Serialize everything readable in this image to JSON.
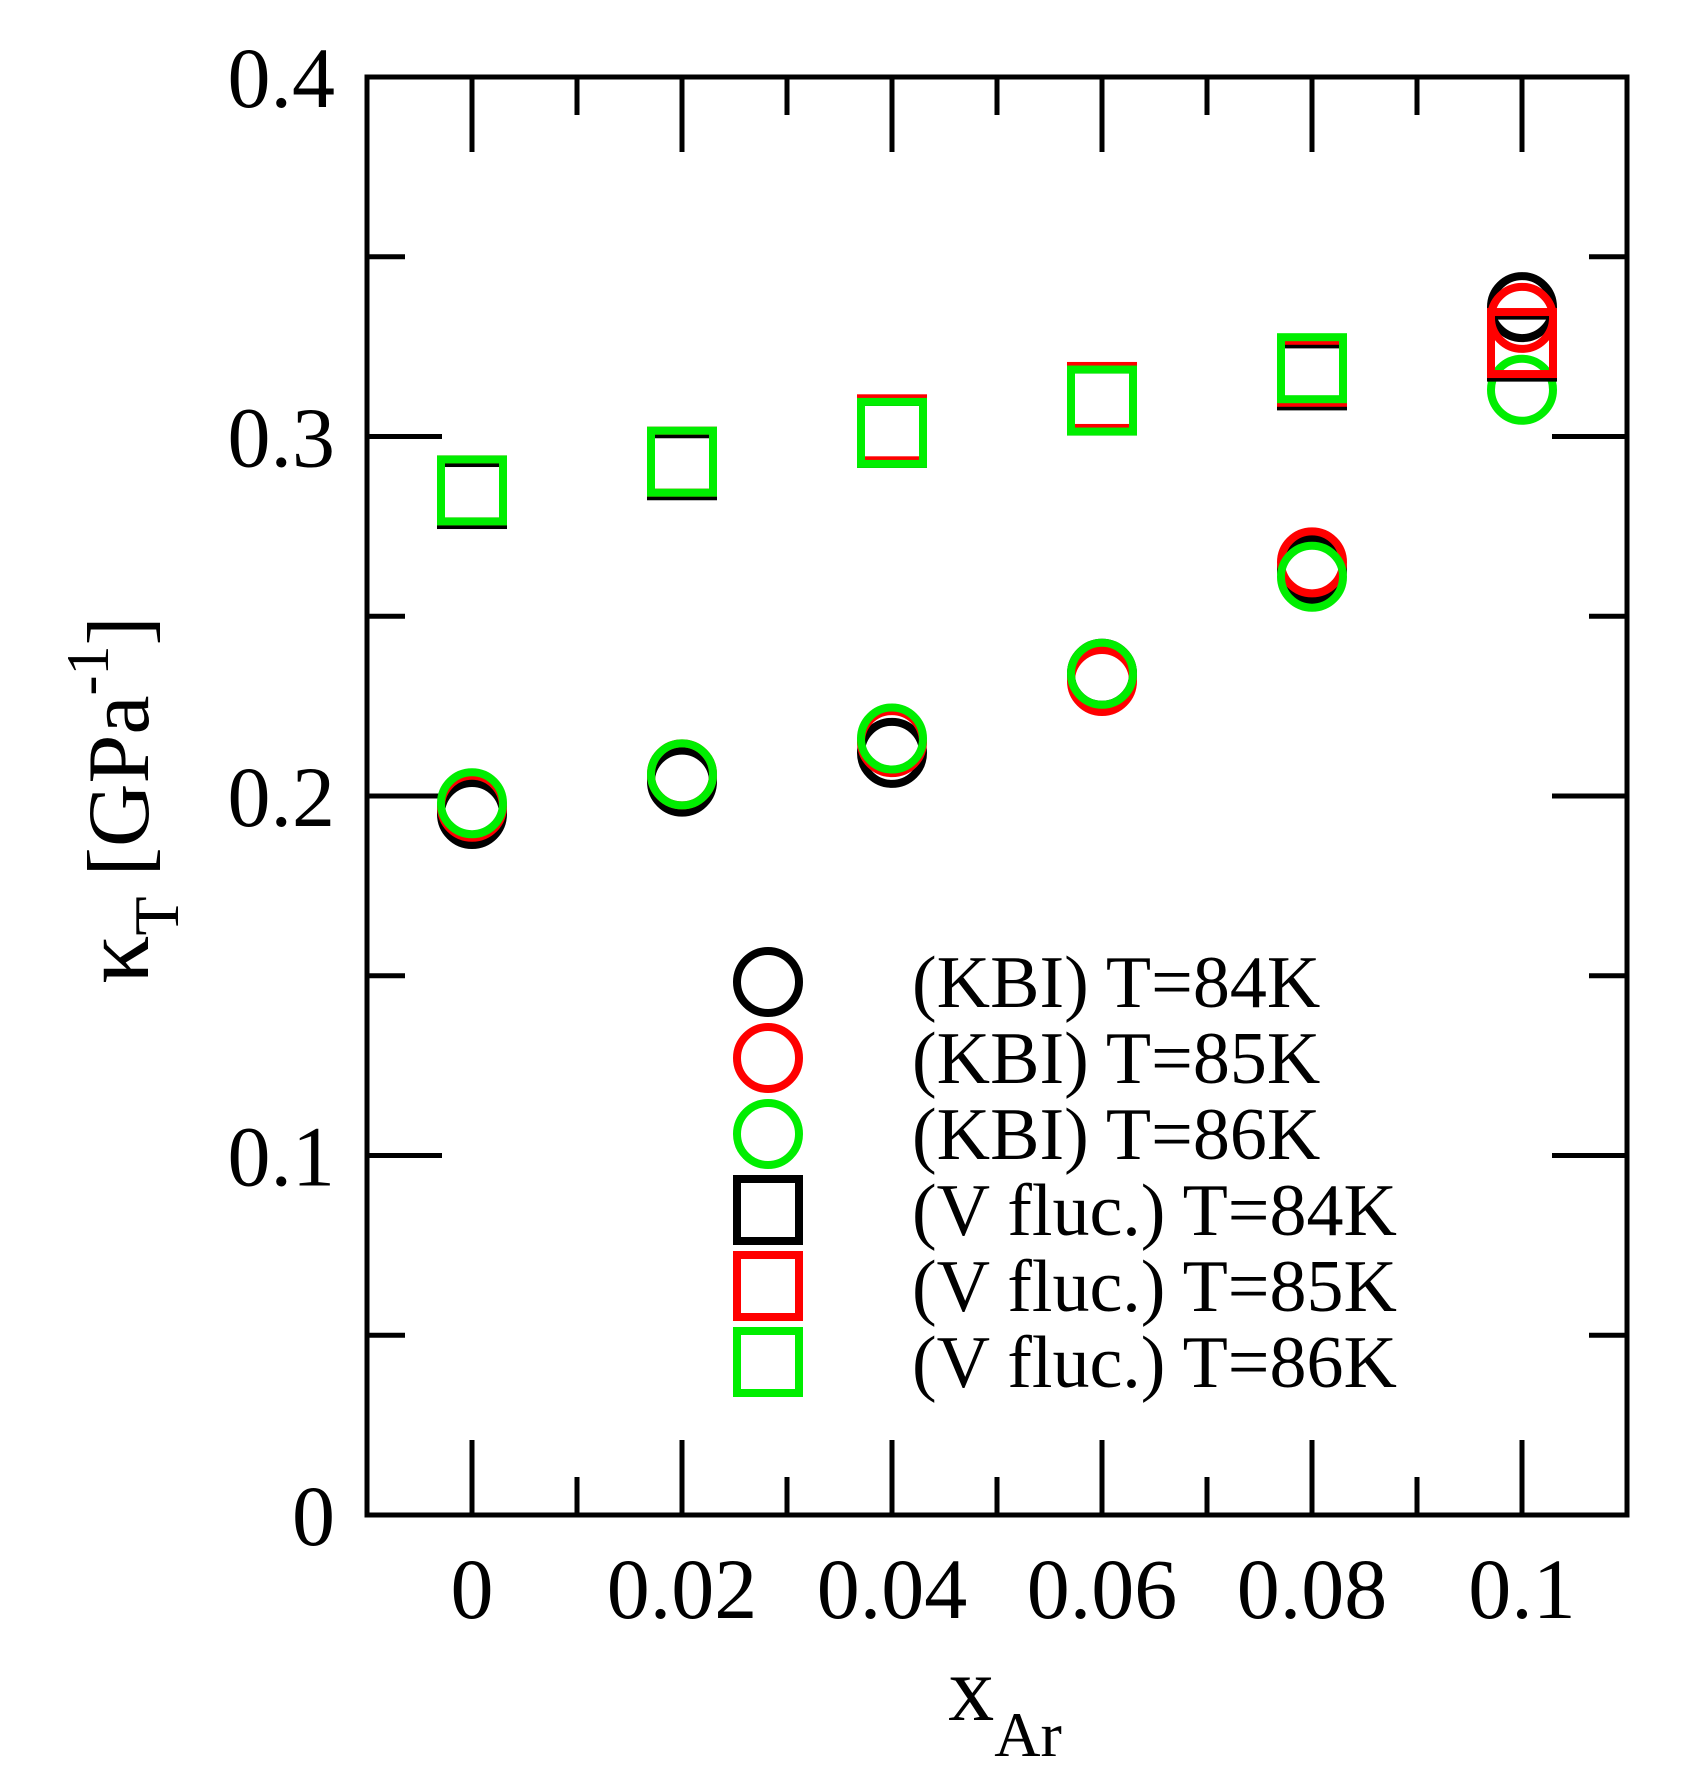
{
  "chart_data": {
    "type": "scatter",
    "title": "",
    "xlabel": {
      "main": "x",
      "sub": "Ar"
    },
    "ylabel": {
      "main": "κ",
      "sub": "T",
      "unit_open": "[GPa",
      "sup": "-1",
      "unit_close": "]"
    },
    "xlim": [
      -0.01,
      0.11
    ],
    "ylim": [
      0,
      0.4
    ],
    "x_major_ticks": [
      0,
      0.02,
      0.04,
      0.06,
      0.08,
      0.1
    ],
    "x_tick_labels": [
      "0",
      "0.02",
      "0.04",
      "0.06",
      "0.08",
      "0.1"
    ],
    "x_minor_ticks": [
      0.01,
      0.03,
      0.05,
      0.07,
      0.09
    ],
    "y_major_ticks": [
      0,
      0.1,
      0.2,
      0.3,
      0.4
    ],
    "y_tick_labels": [
      "0",
      "0.1",
      "0.2",
      "0.3",
      "0.4"
    ],
    "y_minor_ticks": [
      0.05,
      0.15,
      0.25,
      0.35
    ],
    "grid": false,
    "legend_position": "lower-right",
    "series": [
      {
        "name": "(KBI) T=84K",
        "marker": "circle",
        "color": "#000000",
        "x": [
          0,
          0.02,
          0.04,
          0.06,
          0.08,
          0.1
        ],
        "y": [
          0.195,
          0.204,
          0.212,
          0.234,
          0.263,
          0.336
        ]
      },
      {
        "name": "(KBI) T=85K",
        "marker": "circle",
        "color": "#ff0000",
        "x": [
          0,
          0.02,
          0.04,
          0.06,
          0.08,
          0.1
        ],
        "y": [
          0.197,
          0.206,
          0.215,
          0.232,
          0.265,
          0.333
        ]
      },
      {
        "name": "(KBI) T=86K",
        "marker": "circle",
        "color": "#00ee00",
        "x": [
          0,
          0.02,
          0.04,
          0.06,
          0.08,
          0.1
        ],
        "y": [
          0.198,
          0.206,
          0.216,
          0.234,
          0.261,
          0.313
        ]
      },
      {
        "name": "(V fluc.) T=84K",
        "marker": "square",
        "color": "#000000",
        "x": [
          0,
          0.02,
          0.04,
          0.06,
          0.08,
          0.1
        ],
        "y": [
          0.284,
          0.292,
          0.301,
          0.31,
          0.317,
          0.325
        ]
      },
      {
        "name": "(V fluc.) T=85K",
        "marker": "square",
        "color": "#ff0000",
        "x": [
          0,
          0.02,
          0.04,
          0.06,
          0.08,
          0.1
        ],
        "y": [
          0.285,
          0.293,
          0.302,
          0.311,
          0.318,
          0.326
        ]
      },
      {
        "name": "(V fluc.) T=86K",
        "marker": "square",
        "color": "#00ee00",
        "x": [
          0,
          0.02,
          0.04,
          0.06,
          0.08
        ],
        "y": [
          0.285,
          0.293,
          0.301,
          0.31,
          0.319
        ]
      }
    ]
  }
}
